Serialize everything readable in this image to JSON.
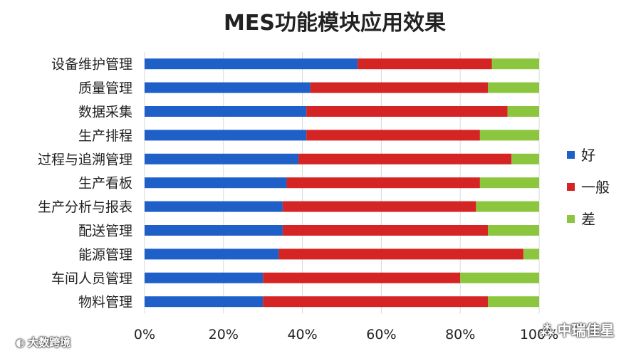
{
  "chart_data": {
    "type": "bar",
    "orientation": "horizontal",
    "stacked": "percent",
    "title": "MES功能模块应用效果",
    "categories": [
      "设备维护管理",
      "质量管理",
      "数据采集",
      "生产排程",
      "过程与追溯管理",
      "生产看板",
      "生产分析与报表",
      "配送管理",
      "能源管理",
      "车间人员管理",
      "物料管理"
    ],
    "series": [
      {
        "name": "好",
        "color": "#1f5fc8",
        "values": [
          54,
          42,
          41,
          41,
          39,
          36,
          35,
          35,
          34,
          30,
          30
        ]
      },
      {
        "name": "一般",
        "color": "#d42424",
        "values": [
          34,
          45,
          51,
          44,
          54,
          49,
          49,
          52,
          62,
          50,
          57
        ]
      },
      {
        "name": "差",
        "color": "#8cc63f",
        "values": [
          12,
          13,
          8,
          15,
          7,
          15,
          16,
          13,
          4,
          20,
          13
        ]
      }
    ],
    "xlim": [
      0,
      100
    ],
    "xticks": [
      "0%",
      "20%",
      "40%",
      "60%",
      "80%",
      "100%"
    ],
    "legend_position": "right",
    "grid": true
  },
  "watermarks": {
    "left": "大数跨境",
    "right": "中瑞佳星"
  }
}
